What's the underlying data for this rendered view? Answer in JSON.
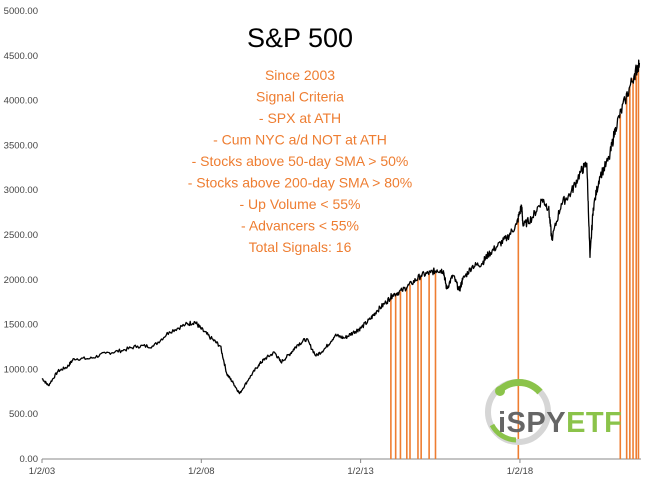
{
  "chart_data": {
    "type": "line",
    "title": "S&P 500",
    "xlabel": "",
    "ylabel": "",
    "ylim": [
      0,
      5000
    ],
    "grid": false,
    "yticks": [
      0,
      500,
      1000,
      1500,
      2000,
      2500,
      3000,
      3500,
      4000,
      4500,
      5000
    ],
    "ytick_labels": [
      "0.00",
      "500.00",
      "1000.00",
      "1500.00",
      "2000.00",
      "2500.00",
      "3000.00",
      "3500.00",
      "4000.00",
      "4500.00",
      "5000.00"
    ],
    "xticks": [
      2003.0,
      2008.0,
      2013.0,
      2018.0
    ],
    "xtick_labels": [
      "1/2/03",
      "1/2/08",
      "1/2/13",
      "1/2/18"
    ],
    "xlim": [
      2003.0,
      2021.8
    ],
    "series": [
      {
        "color": "#000000",
        "x": [
          2003.0,
          2003.2,
          2003.5,
          2003.8,
          2004.0,
          2004.5,
          2005.0,
          2005.5,
          2006.0,
          2006.5,
          2007.0,
          2007.5,
          2007.8,
          2008.0,
          2008.3,
          2008.6,
          2008.8,
          2009.0,
          2009.2,
          2009.5,
          2009.8,
          2010.0,
          2010.3,
          2010.5,
          2010.8,
          2011.0,
          2011.3,
          2011.6,
          2011.9,
          2012.2,
          2012.5,
          2012.8,
          2013.0,
          2013.3,
          2013.5,
          2013.8,
          2014.0,
          2014.3,
          2014.6,
          2014.9,
          2015.2,
          2015.4,
          2015.6,
          2015.7,
          2015.9,
          2016.1,
          2016.2,
          2016.5,
          2016.8,
          2017.0,
          2017.3,
          2017.6,
          2017.9,
          2018.05,
          2018.1,
          2018.4,
          2018.7,
          2018.9,
          2019.0,
          2019.3,
          2019.6,
          2019.9,
          2020.1,
          2020.2,
          2020.3,
          2020.5,
          2020.8,
          2021.0,
          2021.3,
          2021.6,
          2021.75
        ],
        "y": [
          900,
          820,
          980,
          1030,
          1120,
          1120,
          1180,
          1210,
          1260,
          1260,
          1420,
          1500,
          1530,
          1450,
          1350,
          1260,
          950,
          850,
          730,
          900,
          1050,
          1120,
          1190,
          1080,
          1180,
          1270,
          1340,
          1150,
          1240,
          1380,
          1350,
          1420,
          1460,
          1560,
          1650,
          1750,
          1830,
          1880,
          1960,
          2050,
          2080,
          2110,
          2100,
          1900,
          2050,
          1880,
          2000,
          2150,
          2180,
          2280,
          2380,
          2470,
          2620,
          2830,
          2600,
          2700,
          2900,
          2800,
          2450,
          2850,
          2970,
          3200,
          3300,
          2250,
          2800,
          3150,
          3350,
          3700,
          4000,
          4300,
          4420
        ]
      }
    ],
    "signal_dates": [
      2013.95,
      2014.1,
      2014.25,
      2014.45,
      2014.55,
      2014.8,
      2014.9,
      2015.15,
      2015.35,
      2017.95,
      2021.15,
      2021.35,
      2021.45,
      2021.55,
      2021.65,
      2021.72
    ],
    "signal_color": "#ee7d31",
    "annotation": [
      "Since 2003",
      "Signal Criteria",
      "- SPX at ATH",
      "- Cum NYC a/d NOT at ATH",
      "- Stocks above 50-day SMA > 50%",
      "- Stocks above 200-day SMA > 80%",
      "- Up Volume < 55%",
      "- Advancers < 55%",
      "Total Signals: 16"
    ]
  },
  "logo": {
    "name": "iSPYETF",
    "part1": "iSPY",
    "part2": "ETF",
    "color1": "#666666",
    "color2": "#8bc34a"
  }
}
